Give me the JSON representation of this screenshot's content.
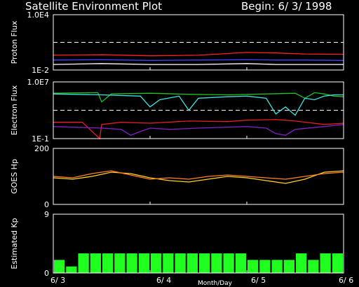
{
  "header": {
    "title": "Satellite Environment Plot",
    "begin": "Begin: 6/ 3/ 1998"
  },
  "x_axis": {
    "label": "Month/Day",
    "ticks": [
      "6/ 3",
      "6/ 4",
      "6/ 5",
      "6/ 6"
    ]
  },
  "chart_data": [
    {
      "type": "line",
      "ylabel": "Proton Flux",
      "scale": "log",
      "ylim": [
        0.01,
        10000
      ],
      "y_ticks": [
        "1.0E4",
        "1E-2"
      ],
      "threshold": 10,
      "x_days": [
        0,
        3
      ],
      "series": [
        {
          "color": "#ff2020",
          "x": [
            0,
            0.5,
            1.0,
            1.5,
            2.0,
            2.3,
            2.6,
            3.0
          ],
          "values": [
            0.4,
            0.45,
            0.35,
            0.4,
            0.8,
            0.7,
            0.55,
            0.5
          ]
        },
        {
          "color": "#4040ff",
          "x": [
            0,
            0.5,
            1.0,
            1.5,
            2.0,
            2.3,
            2.6,
            3.0
          ],
          "values": [
            0.12,
            0.13,
            0.11,
            0.12,
            0.13,
            0.12,
            0.12,
            0.11
          ]
        },
        {
          "color": "#ffffff",
          "x": [
            0,
            0.5,
            1.0,
            1.5,
            2.0,
            2.3,
            2.6,
            3.0
          ],
          "values": [
            0.04,
            0.05,
            0.04,
            0.04,
            0.05,
            0.04,
            0.04,
            0.04
          ]
        }
      ]
    },
    {
      "type": "line",
      "ylabel": "Electron Flux",
      "scale": "log",
      "ylim": [
        0.1,
        10000000
      ],
      "y_ticks": [
        "1.0E7",
        "1E-1"
      ],
      "threshold": 1000,
      "series": [
        {
          "color": "#20c020",
          "x": [
            0,
            0.4,
            0.46,
            0.5,
            0.6,
            1.0,
            1.4,
            1.8,
            2.2,
            2.5,
            2.6,
            2.7,
            2.8,
            2.9,
            3.0
          ],
          "values": [
            250000,
            300000,
            300000,
            15000,
            200000,
            250000,
            180000,
            150000,
            200000,
            250000,
            50000,
            300000,
            200000,
            100000,
            80000
          ]
        },
        {
          "color": "#40e0e0",
          "x": [
            0,
            0.5,
            0.9,
            1.0,
            1.1,
            1.3,
            1.4,
            1.5,
            1.8,
            2.0,
            2.2,
            2.3,
            2.4,
            2.5,
            2.6,
            2.7,
            2.8,
            2.9,
            3.0
          ],
          "values": [
            200000,
            150000,
            100000,
            3000,
            30000,
            100000,
            1000,
            50000,
            80000,
            100000,
            50000,
            300,
            3000,
            200,
            50000,
            30000,
            100000,
            150000,
            150000
          ]
        },
        {
          "color": "#e02020",
          "x": [
            0,
            0.3,
            0.48,
            0.5,
            0.7,
            1.0,
            1.4,
            1.8,
            2.0,
            2.3,
            2.5,
            2.8,
            3.0
          ],
          "values": [
            20,
            20,
            0.1,
            10,
            20,
            15,
            30,
            25,
            40,
            50,
            30,
            10,
            15
          ]
        },
        {
          "color": "#8020c0",
          "x": [
            0,
            0.5,
            0.7,
            0.8,
            0.9,
            1.0,
            1.2,
            1.5,
            2.0,
            2.2,
            2.3,
            2.4,
            2.5,
            2.8,
            3.0
          ],
          "values": [
            5,
            3,
            2,
            0.3,
            1,
            3,
            2,
            3,
            5,
            3,
            0.5,
            0.3,
            2,
            5,
            10
          ]
        }
      ]
    },
    {
      "type": "line",
      "ylabel": "GOES Hp",
      "ylim": [
        0,
        200
      ],
      "y_ticks": [
        "200",
        "0"
      ],
      "series": [
        {
          "color": "#ffd020",
          "x": [
            0,
            0.2,
            0.4,
            0.6,
            0.8,
            1.0,
            1.2,
            1.4,
            1.6,
            1.8,
            2.0,
            2.2,
            2.4,
            2.6,
            2.8,
            3.0
          ],
          "values": [
            95,
            90,
            100,
            115,
            110,
            95,
            85,
            80,
            90,
            100,
            95,
            85,
            75,
            90,
            115,
            120
          ]
        },
        {
          "color": "#ff8020",
          "x": [
            0,
            0.2,
            0.4,
            0.6,
            0.8,
            1.0,
            1.2,
            1.4,
            1.6,
            1.8,
            2.0,
            2.2,
            2.4,
            2.6,
            2.8,
            3.0
          ],
          "values": [
            100,
            95,
            110,
            120,
            105,
            90,
            95,
            90,
            100,
            105,
            100,
            95,
            90,
            100,
            110,
            115
          ]
        }
      ]
    },
    {
      "type": "bar",
      "ylabel": "Estimated Kp",
      "ylim": [
        0,
        9
      ],
      "y_ticks": [
        "9",
        "0"
      ],
      "bar_color": "#20ff20",
      "values": [
        2,
        1,
        3,
        3,
        3,
        3,
        3,
        3,
        3,
        3,
        3,
        3,
        3,
        3,
        3,
        3,
        2,
        2,
        2,
        2,
        3,
        2,
        3,
        3
      ]
    }
  ]
}
